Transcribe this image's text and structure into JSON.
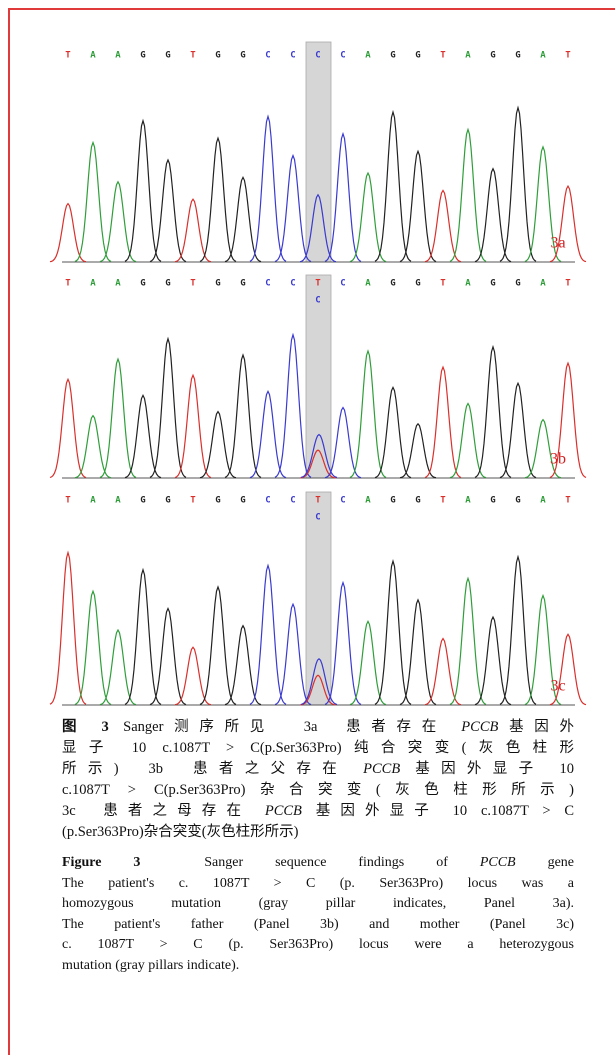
{
  "figure": {
    "base_colors": {
      "T": "#d9302c",
      "A": "#2f9e3a",
      "G": "#222222",
      "C": "#3a3ad0"
    },
    "label_color": "#d22020",
    "panels": [
      {
        "label": "3a",
        "bases": [
          "T",
          "A",
          "A",
          "G",
          "G",
          "T",
          "G",
          "G",
          "C",
          "C",
          "C",
          "C",
          "A",
          "G",
          "G",
          "T",
          "A",
          "G",
          "G",
          "A",
          "T"
        ],
        "secondary": null
      },
      {
        "label": "3b",
        "bases": [
          "T",
          "A",
          "A",
          "G",
          "G",
          "T",
          "G",
          "G",
          "C",
          "C",
          "T",
          "C",
          "A",
          "G",
          "G",
          "T",
          "A",
          "G",
          "G",
          "A",
          "T"
        ],
        "secondary": "C"
      },
      {
        "label": "3c",
        "bases": [
          "T",
          "A",
          "A",
          "G",
          "G",
          "T",
          "G",
          "G",
          "C",
          "C",
          "T",
          "C",
          "A",
          "G",
          "G",
          "T",
          "A",
          "G",
          "G",
          "A",
          "T"
        ],
        "secondary": "C"
      }
    ],
    "caption_zh": [
      [
        {
          "text": "图 3",
          "style": "bold"
        },
        " Sanger测序所见  3a  患者存在 ",
        {
          "text": "PCCB",
          "style": "italic"
        },
        "基因外"
      ],
      [
        "显子 10 c.1087T > C(p.Ser363Pro)纯合突变(灰色柱形"
      ],
      [
        "所示)  3b  患者之父存在 ",
        {
          "text": "PCCB",
          "style": "italic"
        },
        " 基因外显子 10"
      ],
      [
        "c.1087T > C(p.Ser363Pro)杂合突变(灰色柱形所示)"
      ],
      [
        "3c  患者之母存在 ",
        {
          "text": "PCCB",
          "style": "italic"
        },
        " 基因外显子 10 c.1087T > C"
      ],
      [
        "(p.Ser363Pro)杂合突变(灰色柱形所示)"
      ]
    ],
    "caption_en": [
      [
        {
          "text": "Figure 3",
          "style": "bold"
        },
        "  Sanger sequence findings of ",
        {
          "text": "PCCB",
          "style": "italic"
        },
        " gene"
      ],
      [
        "The patient's c. 1087T > C (p. Ser363Pro) locus was a"
      ],
      [
        "homozygous mutation (gray pillar indicates, Panel 3a)."
      ],
      [
        "The patient's father (Panel 3b) and mother (Panel 3c)"
      ],
      [
        "c. 1087T > C (p. Ser363Pro) locus were a heterozygous"
      ],
      [
        "mutation (gray pillars indicate)."
      ]
    ]
  }
}
